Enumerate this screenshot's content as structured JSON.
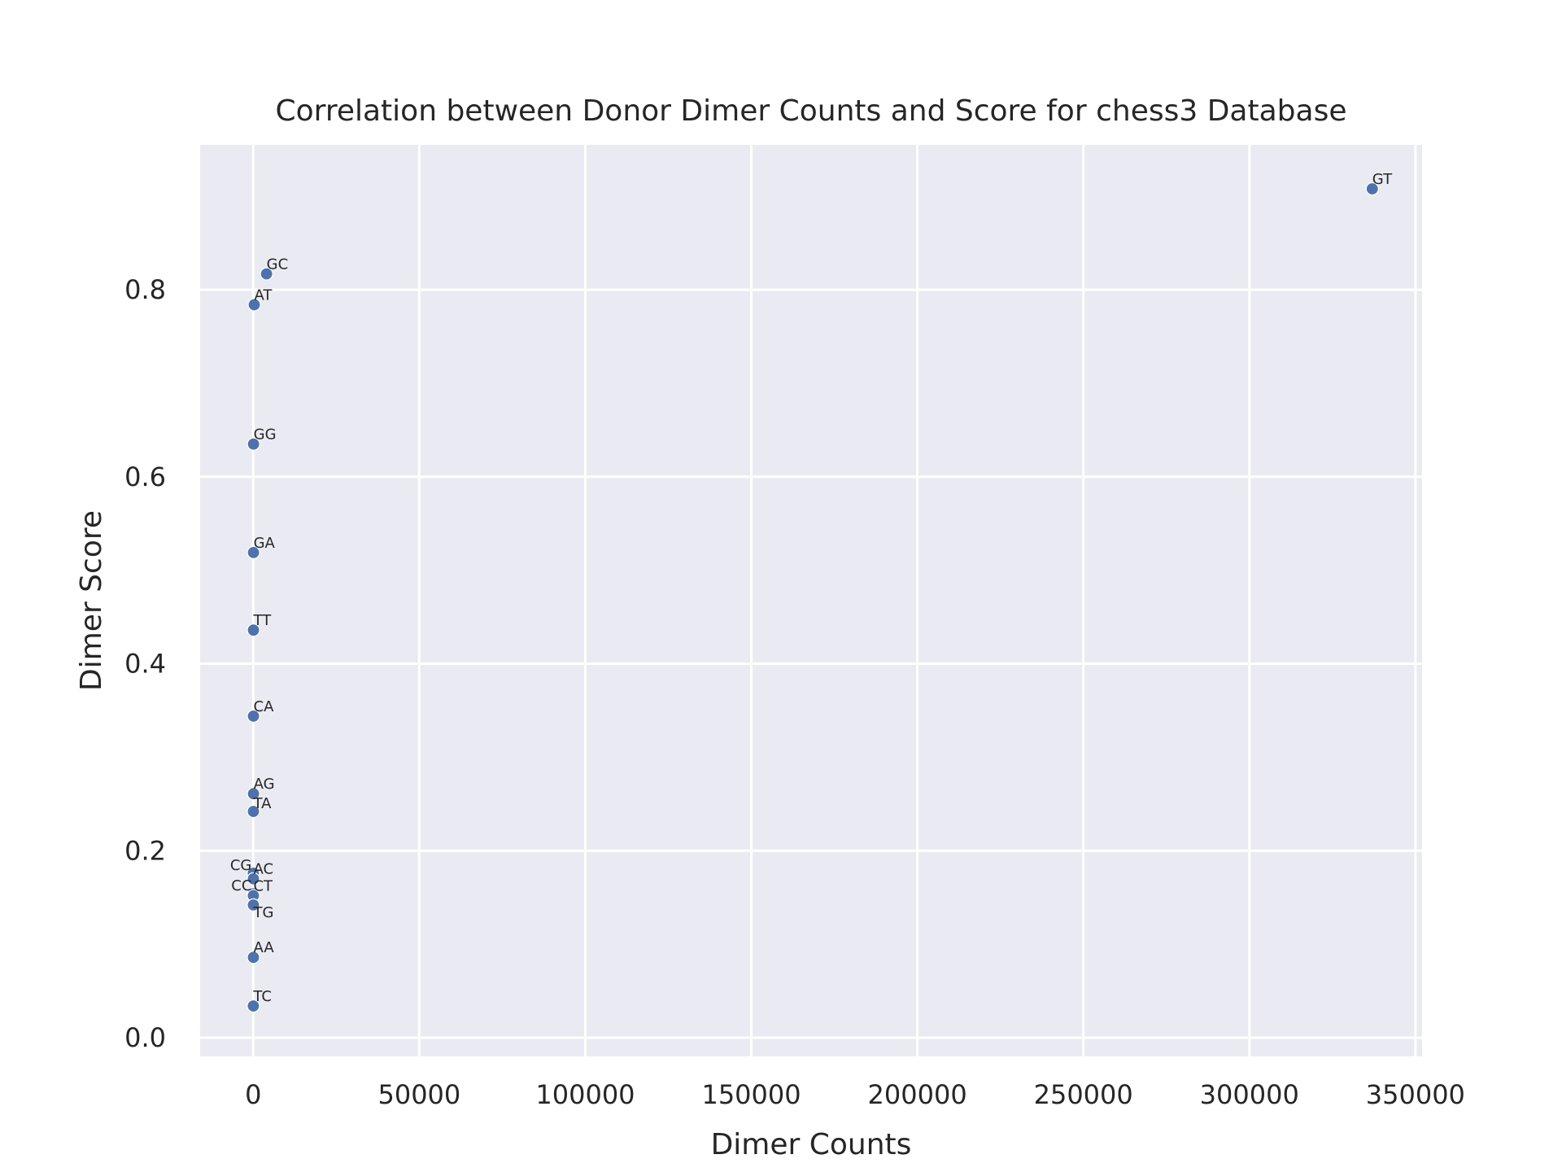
{
  "chart_data": {
    "type": "scatter",
    "title": "Correlation between Donor Dimer Counts and Score for chess3 Database",
    "xlabel": "Dimer Counts",
    "ylabel": "Dimer Score",
    "xlim": [
      -16000,
      352000
    ],
    "ylim": [
      -0.02,
      0.955
    ],
    "xticks": [
      0,
      50000,
      100000,
      150000,
      200000,
      250000,
      300000,
      350000
    ],
    "xtick_labels": [
      "0",
      "50000",
      "100000",
      "150000",
      "200000",
      "250000",
      "300000",
      "350000"
    ],
    "yticks": [
      0.0,
      0.2,
      0.4,
      0.6,
      0.8
    ],
    "ytick_labels": [
      "0.0",
      "0.2",
      "0.4",
      "0.6",
      "0.8"
    ],
    "grid": true,
    "legend": "none",
    "colors": {
      "background": "#eaeaf2",
      "grid": "#ffffff",
      "point": "#4c72b0",
      "point_edge": "#ffffff"
    },
    "points": [
      {
        "label": "GT",
        "x": 337000,
        "y": 0.908
      },
      {
        "label": "GC",
        "x": 4000,
        "y": 0.817
      },
      {
        "label": "AT",
        "x": 300,
        "y": 0.784
      },
      {
        "label": "GG",
        "x": 80,
        "y": 0.635
      },
      {
        "label": "GA",
        "x": 70,
        "y": 0.519
      },
      {
        "label": "TT",
        "x": 60,
        "y": 0.436
      },
      {
        "label": "CA",
        "x": 60,
        "y": 0.344
      },
      {
        "label": "AG",
        "x": 70,
        "y": 0.261
      },
      {
        "label": "TA",
        "x": 50,
        "y": 0.242
      },
      {
        "label": "CG",
        "x": 20,
        "y": 0.176
      },
      {
        "label": "AC",
        "x": 40,
        "y": 0.17
      },
      {
        "label": "CC",
        "x": 30,
        "y": 0.154
      },
      {
        "label": "CT",
        "x": 40,
        "y": 0.152
      },
      {
        "label": "TG",
        "x": 40,
        "y": 0.142
      },
      {
        "label": "AA",
        "x": 50,
        "y": 0.086
      },
      {
        "label": "TC",
        "x": 30,
        "y": 0.034
      }
    ]
  }
}
